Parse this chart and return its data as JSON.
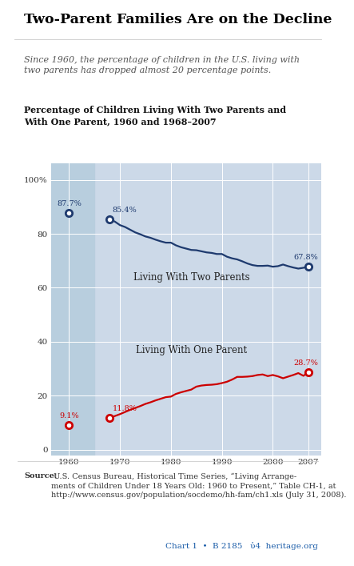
{
  "title": "Two-Parent Families Are on the Decline",
  "subtitle": "Since 1960, the percentage of children in the U.S. living with\ntwo parents has dropped almost 20 percentage points.",
  "chart_title": "Percentage of Children Living With Two Parents and\nWith One Parent, 1960 and 1968–2007",
  "background_color": "#ffffff",
  "plot_bg_color": "#ccd9e8",
  "col1960_color": "#b8cede",
  "two_parents": {
    "x": [
      1960,
      1968,
      1969,
      1970,
      1971,
      1972,
      1973,
      1974,
      1975,
      1976,
      1977,
      1978,
      1979,
      1980,
      1981,
      1982,
      1983,
      1984,
      1985,
      1986,
      1987,
      1988,
      1989,
      1990,
      1991,
      1992,
      1993,
      1994,
      1995,
      1996,
      1997,
      1998,
      1999,
      2000,
      2001,
      2002,
      2003,
      2004,
      2005,
      2006,
      2007
    ],
    "y": [
      87.7,
      85.4,
      84.5,
      83.2,
      82.5,
      81.5,
      80.5,
      79.8,
      79.0,
      78.5,
      77.8,
      77.2,
      76.7,
      76.7,
      75.7,
      75.0,
      74.5,
      74.0,
      73.9,
      73.5,
      73.1,
      72.9,
      72.5,
      72.5,
      71.5,
      70.9,
      70.5,
      69.8,
      69.0,
      68.4,
      68.1,
      68.1,
      68.2,
      67.8,
      68.0,
      68.6,
      68.0,
      67.5,
      67.1,
      67.4,
      67.8
    ],
    "color": "#1e3a6e",
    "label": "Living With Two Parents",
    "annotate_start": "87.7%",
    "annotate_mid": "85.4%",
    "annotate_end": "67.8%"
  },
  "one_parent": {
    "x": [
      1960,
      1968,
      1969,
      1970,
      1971,
      1972,
      1973,
      1974,
      1975,
      1976,
      1977,
      1978,
      1979,
      1980,
      1981,
      1982,
      1983,
      1984,
      1985,
      1986,
      1987,
      1988,
      1989,
      1990,
      1991,
      1992,
      1993,
      1994,
      1995,
      1996,
      1997,
      1998,
      1999,
      2000,
      2001,
      2002,
      2003,
      2004,
      2005,
      2006,
      2007
    ],
    "y": [
      9.1,
      11.8,
      12.5,
      13.2,
      14.0,
      14.8,
      15.5,
      16.2,
      17.0,
      17.6,
      18.3,
      18.9,
      19.5,
      19.7,
      20.7,
      21.3,
      21.8,
      22.3,
      23.4,
      23.8,
      24.0,
      24.1,
      24.3,
      24.7,
      25.2,
      26.0,
      27.0,
      27.0,
      27.1,
      27.3,
      27.7,
      27.9,
      27.3,
      27.7,
      27.2,
      26.5,
      27.1,
      27.7,
      28.4,
      27.4,
      28.7
    ],
    "color": "#cc0000",
    "label": "Living With One Parent",
    "annotate_start": "9.1%",
    "annotate_mid": "11.8%",
    "annotate_end": "28.7%"
  },
  "yticks": [
    0,
    20,
    40,
    60,
    80,
    100
  ],
  "xticks": [
    1960,
    1970,
    1980,
    1990,
    2000,
    2007
  ],
  "xlim": [
    1956.5,
    2009.5
  ],
  "ylim": [
    -2,
    106
  ],
  "grid_color": "#ffffff",
  "source_bold": "Source:",
  "source_text": " U.S. Census Bureau, Historical Time Series, “Living Arrange-\nments of Children Under 18 Years Old: 1960 to Present,” Table CH-1, at\nhttp://www.census.gov/population/socdemo/hh-fam/ch1.xls (July 31, 2008).",
  "chart_id": "Chart 1  •  B 2185",
  "heritage_text": "heritage.org"
}
